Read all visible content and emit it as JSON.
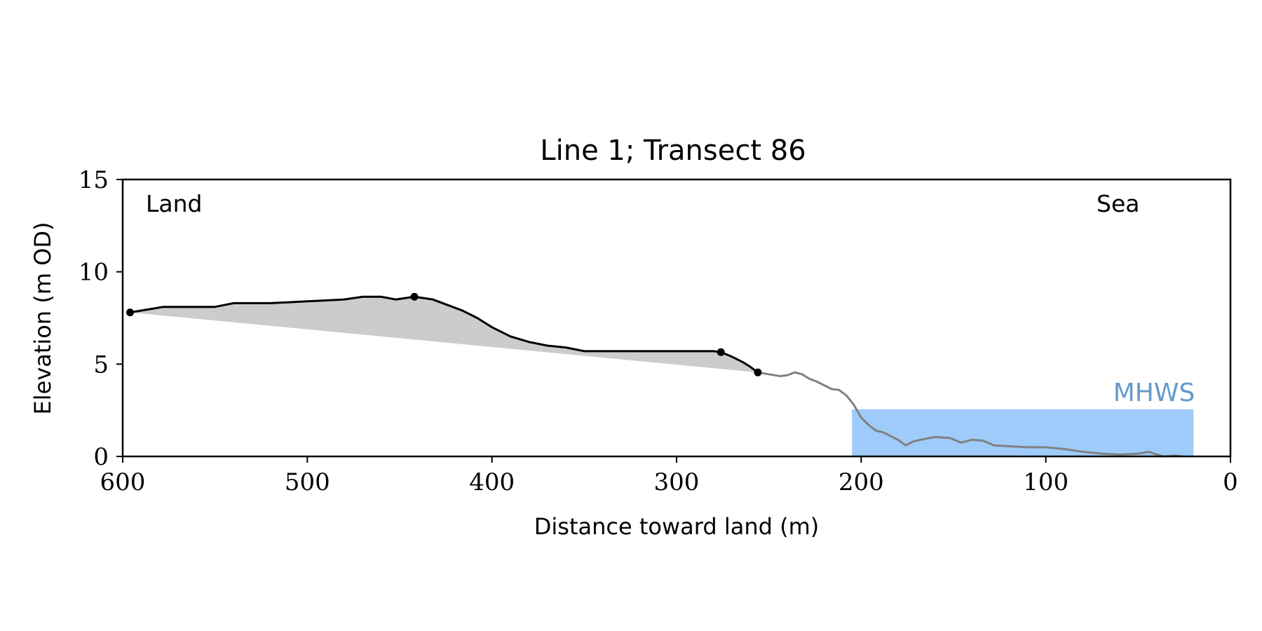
{
  "chart_data": {
    "type": "line",
    "title": "Line 1; Transect 86",
    "xlabel": "Distance toward land (m)",
    "ylabel": "Elevation (m OD)",
    "xlim": [
      600,
      0
    ],
    "ylim": [
      0,
      15
    ],
    "x_ticks": [
      600,
      500,
      400,
      300,
      200,
      100,
      0
    ],
    "y_ticks": [
      0,
      5,
      10,
      15
    ],
    "grid": false,
    "annotations": {
      "land": "Land",
      "sea": "Sea",
      "mhws": "MHWS"
    },
    "colors": {
      "cliff_line": "#000000",
      "profile_line": "#808080",
      "cliff_fill": "#cccccc",
      "mhws_fill": "#9ecbfa",
      "mhws_text": "#6699cc"
    },
    "mhws": {
      "elevation": 2.55,
      "x_range": [
        205,
        20
      ]
    },
    "cliff_markers": [
      {
        "x": 596,
        "y": 7.8
      },
      {
        "x": 442,
        "y": 8.65
      },
      {
        "x": 276,
        "y": 5.65
      },
      {
        "x": 256,
        "y": 4.55
      }
    ],
    "cliff_profile": [
      [
        596,
        7.8
      ],
      [
        590,
        7.9
      ],
      [
        584,
        8.0
      ],
      [
        578,
        8.1
      ],
      [
        570,
        8.1
      ],
      [
        560,
        8.1
      ],
      [
        550,
        8.1
      ],
      [
        540,
        8.3
      ],
      [
        530,
        8.3
      ],
      [
        520,
        8.3
      ],
      [
        510,
        8.35
      ],
      [
        500,
        8.4
      ],
      [
        490,
        8.45
      ],
      [
        480,
        8.5
      ],
      [
        470,
        8.65
      ],
      [
        460,
        8.65
      ],
      [
        452,
        8.5
      ],
      [
        442,
        8.65
      ],
      [
        432,
        8.5
      ],
      [
        424,
        8.2
      ],
      [
        416,
        7.9
      ],
      [
        408,
        7.5
      ],
      [
        400,
        7.0
      ],
      [
        390,
        6.5
      ],
      [
        380,
        6.2
      ],
      [
        370,
        6.0
      ],
      [
        360,
        5.9
      ],
      [
        350,
        5.7
      ],
      [
        340,
        5.7
      ],
      [
        330,
        5.7
      ],
      [
        320,
        5.7
      ],
      [
        310,
        5.7
      ],
      [
        300,
        5.7
      ],
      [
        290,
        5.7
      ],
      [
        280,
        5.7
      ],
      [
        276,
        5.65
      ],
      [
        270,
        5.4
      ],
      [
        264,
        5.1
      ],
      [
        260,
        4.85
      ],
      [
        256,
        4.55
      ]
    ],
    "lower_profile": [
      [
        256,
        4.55
      ],
      [
        250,
        4.45
      ],
      [
        244,
        4.35
      ],
      [
        240,
        4.4
      ],
      [
        236,
        4.55
      ],
      [
        232,
        4.45
      ],
      [
        228,
        4.2
      ],
      [
        224,
        4.05
      ],
      [
        220,
        3.85
      ],
      [
        216,
        3.65
      ],
      [
        212,
        3.6
      ],
      [
        208,
        3.3
      ],
      [
        204,
        2.8
      ],
      [
        200,
        2.1
      ],
      [
        196,
        1.7
      ],
      [
        192,
        1.4
      ],
      [
        188,
        1.3
      ],
      [
        184,
        1.1
      ],
      [
        180,
        0.9
      ],
      [
        176,
        0.6
      ],
      [
        172,
        0.8
      ],
      [
        168,
        0.9
      ],
      [
        160,
        1.05
      ],
      [
        152,
        1.0
      ],
      [
        146,
        0.75
      ],
      [
        140,
        0.9
      ],
      [
        134,
        0.85
      ],
      [
        128,
        0.6
      ],
      [
        120,
        0.55
      ],
      [
        110,
        0.5
      ],
      [
        100,
        0.5
      ],
      [
        90,
        0.4
      ],
      [
        80,
        0.25
      ],
      [
        70,
        0.15
      ],
      [
        60,
        0.1
      ],
      [
        50,
        0.15
      ],
      [
        44,
        0.25
      ],
      [
        40,
        0.1
      ],
      [
        36,
        0.0
      ],
      [
        30,
        0.05
      ],
      [
        26,
        0.0
      ]
    ]
  }
}
